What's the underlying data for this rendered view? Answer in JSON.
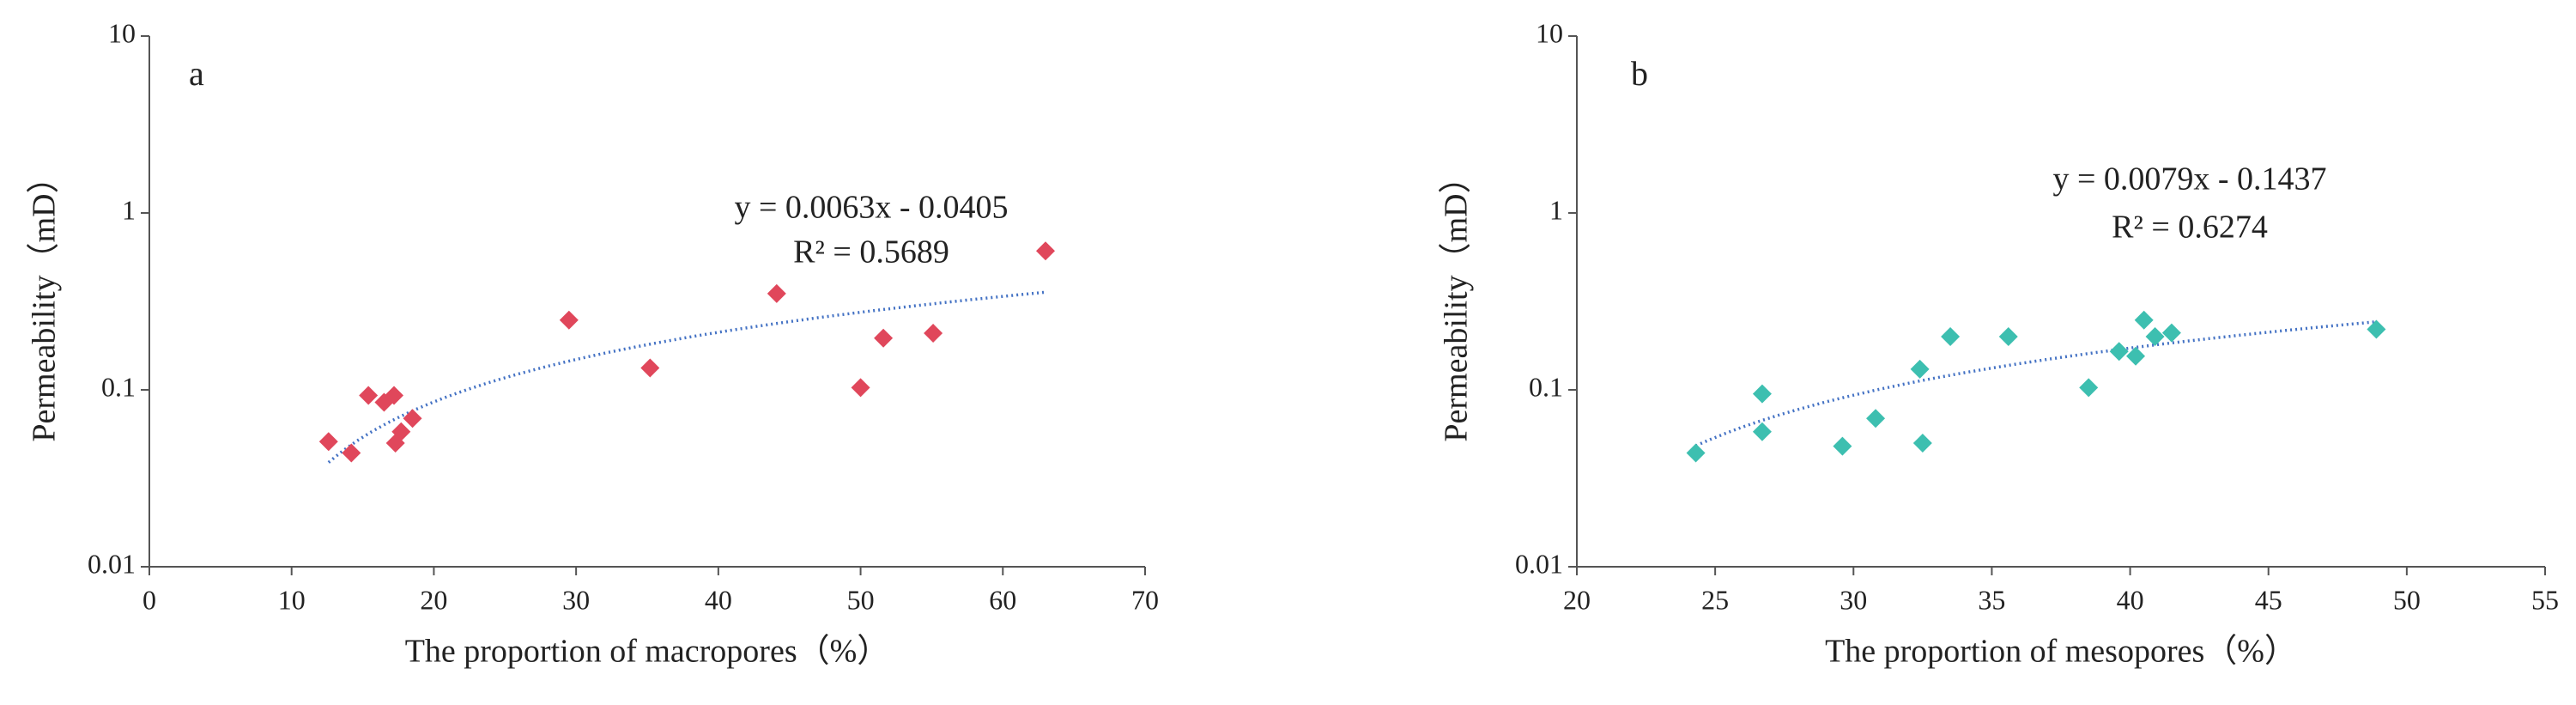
{
  "chart_data": [
    {
      "type": "scatter",
      "panel_label": "a",
      "x_label": "The proportion of macropores（%）",
      "y_label": "Permeability（mD）",
      "x": [
        12.6,
        14.2,
        15.4,
        16.5,
        17.2,
        17.3,
        17.7,
        18.5,
        29.5,
        35.2,
        44.1,
        50.0,
        51.6,
        55.1,
        63.0
      ],
      "values": [
        0.051,
        0.044,
        0.093,
        0.085,
        0.093,
        0.05,
        0.058,
        0.069,
        0.248,
        0.133,
        0.35,
        0.103,
        0.196,
        0.209,
        0.61
      ],
      "color": "#e0475b",
      "xlim": [
        0,
        70
      ],
      "xticks": [
        0,
        10,
        20,
        30,
        40,
        50,
        60,
        70
      ],
      "ylim": [
        0.01,
        10
      ],
      "yticks": [
        0.01,
        0.1,
        1,
        10
      ],
      "log_y": true,
      "trendline": {
        "equation": "y = 0.0063x - 0.0405",
        "r_squared": "R² = 0.5689",
        "slope": 0.0063,
        "intercept": -0.0405,
        "color": "#4472c4"
      }
    },
    {
      "type": "scatter",
      "panel_label": "b",
      "x_label": "The proportion of mesopores（%）",
      "y_label": "Permeability（mD）",
      "x": [
        24.3,
        26.7,
        26.7,
        29.6,
        30.8,
        32.4,
        32.5,
        33.5,
        35.6,
        38.5,
        39.6,
        40.2,
        40.5,
        40.9,
        41.5,
        48.9
      ],
      "values": [
        0.044,
        0.095,
        0.058,
        0.048,
        0.069,
        0.131,
        0.05,
        0.2,
        0.2,
        0.103,
        0.165,
        0.155,
        0.248,
        0.2,
        0.21,
        0.22
      ],
      "color": "#3dbfb0",
      "xlim": [
        20,
        55
      ],
      "xticks": [
        20,
        25,
        30,
        35,
        40,
        45,
        50,
        55
      ],
      "ylim": [
        0.01,
        10
      ],
      "yticks": [
        0.01,
        0.1,
        1,
        10
      ],
      "log_y": true,
      "trendline": {
        "equation": "y = 0.0079x - 0.1437",
        "r_squared": "R² = 0.6274",
        "slope": 0.0079,
        "intercept": -0.1437,
        "color": "#4472c4"
      }
    }
  ]
}
